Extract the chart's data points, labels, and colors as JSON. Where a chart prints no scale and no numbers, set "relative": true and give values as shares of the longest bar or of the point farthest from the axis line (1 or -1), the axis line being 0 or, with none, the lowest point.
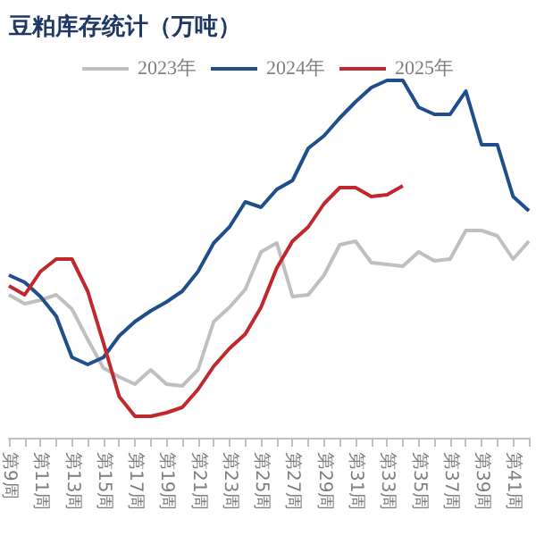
{
  "chart_data": {
    "type": "line",
    "title": "豆粕库存统计（万吨）",
    "relative": true,
    "legend": "top",
    "grid": false,
    "marker": "none",
    "line_style": "solid",
    "categories": [
      "第9周",
      null,
      "第11周",
      null,
      "第13周",
      null,
      "第15周",
      null,
      "第17周",
      null,
      "第19周",
      null,
      "第21周",
      null,
      "第23周",
      null,
      "第25周",
      null,
      "第27周",
      null,
      "第29周",
      null,
      "第31周",
      null,
      "第33周",
      null,
      "第35周",
      null,
      "第37周",
      null,
      "第39周",
      null,
      "第41周",
      null
    ],
    "series": [
      {
        "name": "2023年",
        "color": "#bfbfbf",
        "values": [
          0.4,
          0.375,
          0.385,
          0.4,
          0.36,
          0.275,
          0.195,
          0.17,
          0.15,
          0.19,
          0.15,
          0.145,
          0.19,
          0.325,
          0.365,
          0.415,
          0.52,
          0.545,
          0.395,
          0.4,
          0.455,
          0.54,
          0.55,
          0.49,
          0.485,
          0.48,
          0.52,
          0.495,
          0.5,
          0.58,
          0.58,
          0.565,
          0.5,
          0.55
        ]
      },
      {
        "name": "2024年",
        "color": "#1f4e8c",
        "values": [
          0.455,
          0.435,
          0.395,
          0.34,
          0.225,
          0.205,
          0.225,
          0.285,
          0.325,
          0.355,
          0.38,
          0.41,
          0.465,
          0.545,
          0.59,
          0.66,
          0.645,
          0.695,
          0.72,
          0.81,
          0.845,
          0.895,
          0.94,
          0.98,
          1,
          1,
          0.925,
          0.905,
          0.905,
          0.97,
          0.82,
          0.82,
          0.675,
          0.635
        ]
      },
      {
        "name": "2025年",
        "color": "#c0282d",
        "values": [
          0.425,
          0.4,
          0.465,
          0.5,
          0.5,
          0.41,
          0.265,
          0.115,
          0.06,
          0.06,
          0.07,
          0.085,
          0.135,
          0.2,
          0.25,
          0.29,
          0.365,
          0.475,
          0.55,
          0.59,
          0.655,
          0.7,
          0.7,
          0.675,
          0.68,
          0.705,
          null,
          null,
          null,
          null,
          null,
          null,
          null,
          null
        ]
      }
    ]
  }
}
